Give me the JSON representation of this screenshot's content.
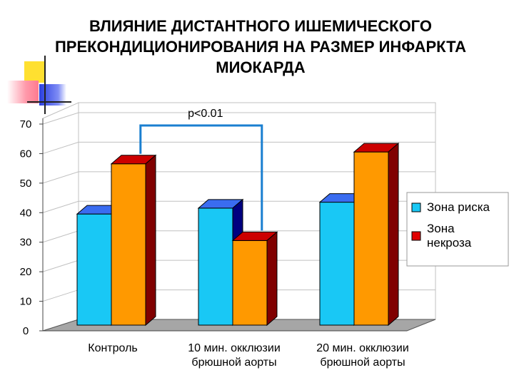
{
  "title": "ВЛИЯНИЕ ДИСТАНТНОГО ИШЕМИЧЕСКОГО ПРЕКОНДИЦИОНИРОВАНИЯ НА РАЗМЕР ИНФАРКТА МИОКАРДА",
  "chart_data": {
    "type": "bar",
    "title": "ВЛИЯНИЕ ДИСТАНТНОГО ИШЕМИЧЕСКОГО ПРЕКОНДИЦИОНИРОВАНИЯ НА РАЗМЕР ИНФАРКТА МИОКАРДА",
    "xlabel": "",
    "ylabel": "",
    "categories": [
      "Контроль",
      "10 мин. окклюзии брюшной аорты",
      "20 мин. окклюзии брюшной аорты"
    ],
    "category_lines": [
      [
        "Контроль"
      ],
      [
        "10 мин. окклюзии",
        "брюшной аорты"
      ],
      [
        "20 мин. окклюзии",
        "брюшной аорты"
      ]
    ],
    "series": [
      {
        "name": "Зона риска",
        "values": [
          41,
          43,
          45
        ],
        "color": "#19c8f5",
        "top_color": "#3a6cf0",
        "side_color": "#000080"
      },
      {
        "name": "Зона некроза",
        "values": [
          58,
          32,
          62
        ],
        "color": "#ff9900",
        "top_color": "#cc0000",
        "side_color": "#800000"
      }
    ],
    "legend": {
      "placement": "right",
      "entries": [
        {
          "lines": [
            "Зона риска"
          ],
          "color": "#19c8f5"
        },
        {
          "lines": [
            "Зона",
            "некроза"
          ],
          "color": "#e00000"
        }
      ]
    },
    "yticks": [
      "0",
      "10",
      "20",
      "30",
      "40",
      "50",
      "60",
      "70"
    ],
    "ylim": [
      0,
      70
    ],
    "grid": true,
    "annotation": {
      "text": "p<0.01",
      "between": [
        "Контроль:Зона некроза",
        "10 мин. окклюзии брюшной аорты:Зона некроза"
      ]
    },
    "colors": {
      "wall_grid": "#c0c0c0",
      "floor": "#a6a6a6",
      "bracket": "#1a7fd0"
    }
  }
}
